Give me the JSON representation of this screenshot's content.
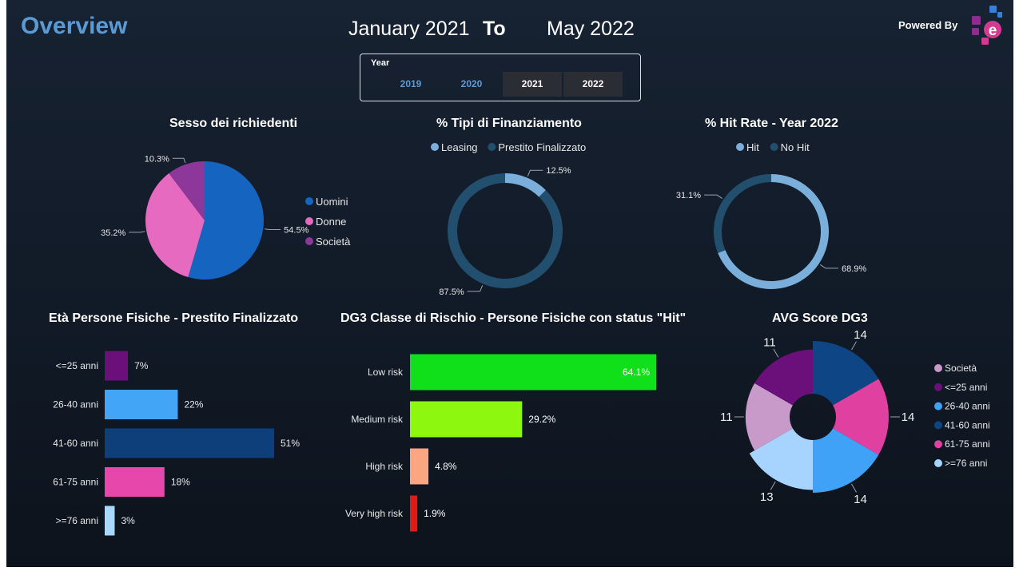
{
  "header": {
    "title": "Overview",
    "date_from": "January 2021",
    "to_label": "To",
    "date_to": "May 2022",
    "powered_by": "Powered By"
  },
  "year_slicer": {
    "title": "Year",
    "options": [
      {
        "label": "2019",
        "selected": false
      },
      {
        "label": "2020",
        "selected": false
      },
      {
        "label": "2021",
        "selected": true
      },
      {
        "label": "2022",
        "selected": true
      }
    ]
  },
  "colors": {
    "accent": "#5b9bd5",
    "background": "#141d2b",
    "logo": [
      "#8e2c91",
      "#d43a8f",
      "#3a7fd6"
    ]
  },
  "chart_data": [
    {
      "type": "pie",
      "title": "Sesso dei richiedenti",
      "legend": "right",
      "categories": [
        "Uomini",
        "Donne",
        "Società"
      ],
      "values": [
        54.5,
        35.2,
        10.3
      ],
      "labels": [
        "54.5%",
        "35.2%",
        "10.3%"
      ],
      "colors": [
        "#1565c0",
        "#e56ac0",
        "#8c3799"
      ]
    },
    {
      "type": "pie",
      "title": "% Tipi di Finanziamento",
      "legend": "top",
      "categories": [
        "Leasing",
        "Prestito Finalizzato"
      ],
      "values": [
        12.5,
        87.5
      ],
      "labels": [
        "12.5%",
        "87.5%"
      ],
      "colors": [
        "#7aaedb",
        "#234f6e"
      ]
    },
    {
      "type": "pie",
      "title": "% Hit Rate - Year 2022",
      "legend": "top",
      "categories": [
        "Hit",
        "No Hit"
      ],
      "values": [
        68.9,
        31.1
      ],
      "labels": [
        "68.9%",
        "31.1%"
      ],
      "colors": [
        "#7aaedb",
        "#234f6e"
      ]
    },
    {
      "type": "bar",
      "title": "Età Persone Fisiche - Prestito Finalizzato",
      "categories": [
        "<=25 anni",
        "26-40 anni",
        "41-60 anni",
        "61-75 anni",
        ">=76 anni"
      ],
      "values": [
        7,
        22,
        51,
        18,
        3
      ],
      "labels": [
        "7%",
        "22%",
        "51%",
        "18%",
        "3%"
      ],
      "colors": [
        "#6b0f7a",
        "#42a5f5",
        "#0e3f7a",
        "#e548aa",
        "#a9d8ff"
      ]
    },
    {
      "type": "bar",
      "title": "DG3 Classe di Rischio - Persone Fisiche con status \"Hit\"",
      "categories": [
        "Low risk",
        "Medium risk",
        "High risk",
        "Very high risk"
      ],
      "values": [
        64.1,
        29.2,
        4.8,
        1.9
      ],
      "labels": [
        "64.1%",
        "29.2%",
        "4.8%",
        "1.9%"
      ],
      "colors": [
        "#10e01a",
        "#8df70f",
        "#fba682",
        "#e01919"
      ]
    },
    {
      "type": "pie",
      "title": "AVG Score DG3",
      "legend": "right",
      "categories": [
        "Società",
        "<=25 anni",
        "26-40 anni",
        "41-60 anni",
        "61-75 anni",
        ">=76 anni"
      ],
      "values": [
        11,
        11,
        14,
        14,
        14,
        13
      ],
      "labels": [
        "11",
        "11",
        "14",
        "14",
        "14",
        "13"
      ],
      "colors": [
        "#c79ac9",
        "#6b0f7a",
        "#3fa2f7",
        "#0e4584",
        "#e040a0",
        "#a6d4ff"
      ]
    }
  ]
}
